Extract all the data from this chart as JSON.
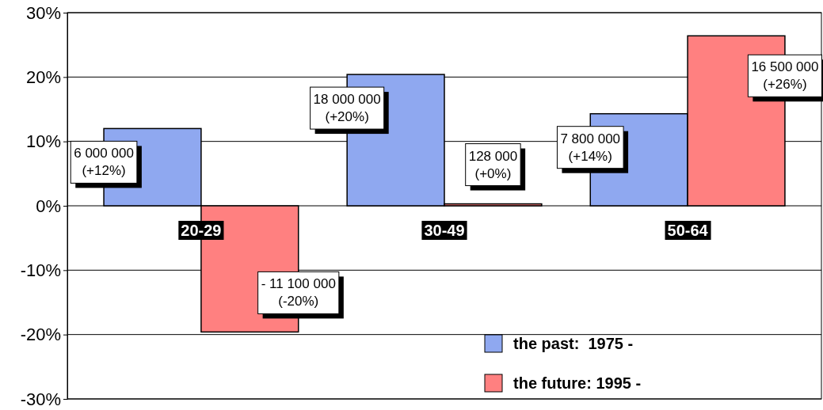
{
  "chart_data": {
    "type": "bar",
    "categories": [
      "20-29",
      "30-49",
      "50-64"
    ],
    "series": [
      {
        "name": "the past:  1975 -",
        "color": "#8fa8f0",
        "values": [
          12.0,
          20.4,
          14.3
        ],
        "value_labels": [
          "6 000 000\n(+12%)",
          "18 000 000\n(+20%)",
          "7 800 000\n(+14%)"
        ]
      },
      {
        "name": "the future: 1995 -",
        "color": "#ff8080",
        "values": [
          -19.6,
          0.3,
          26.4
        ],
        "value_labels": [
          "- 11 100 000\n(-20%)",
          "128 000\n(+0%)",
          "16 500 000\n(+26%)"
        ]
      }
    ],
    "ylim": [
      -30,
      30
    ],
    "yticks": [
      {
        "value": -30,
        "label": "-30%"
      },
      {
        "value": -20,
        "label": "-20%"
      },
      {
        "value": -10,
        "label": "-10%"
      },
      {
        "value": 0,
        "label": "0%"
      },
      {
        "value": 10,
        "label": "10%"
      },
      {
        "value": 20,
        "label": "20%"
      },
      {
        "value": 30,
        "label": "30%"
      }
    ],
    "grid": "y",
    "legend": "bottom"
  }
}
